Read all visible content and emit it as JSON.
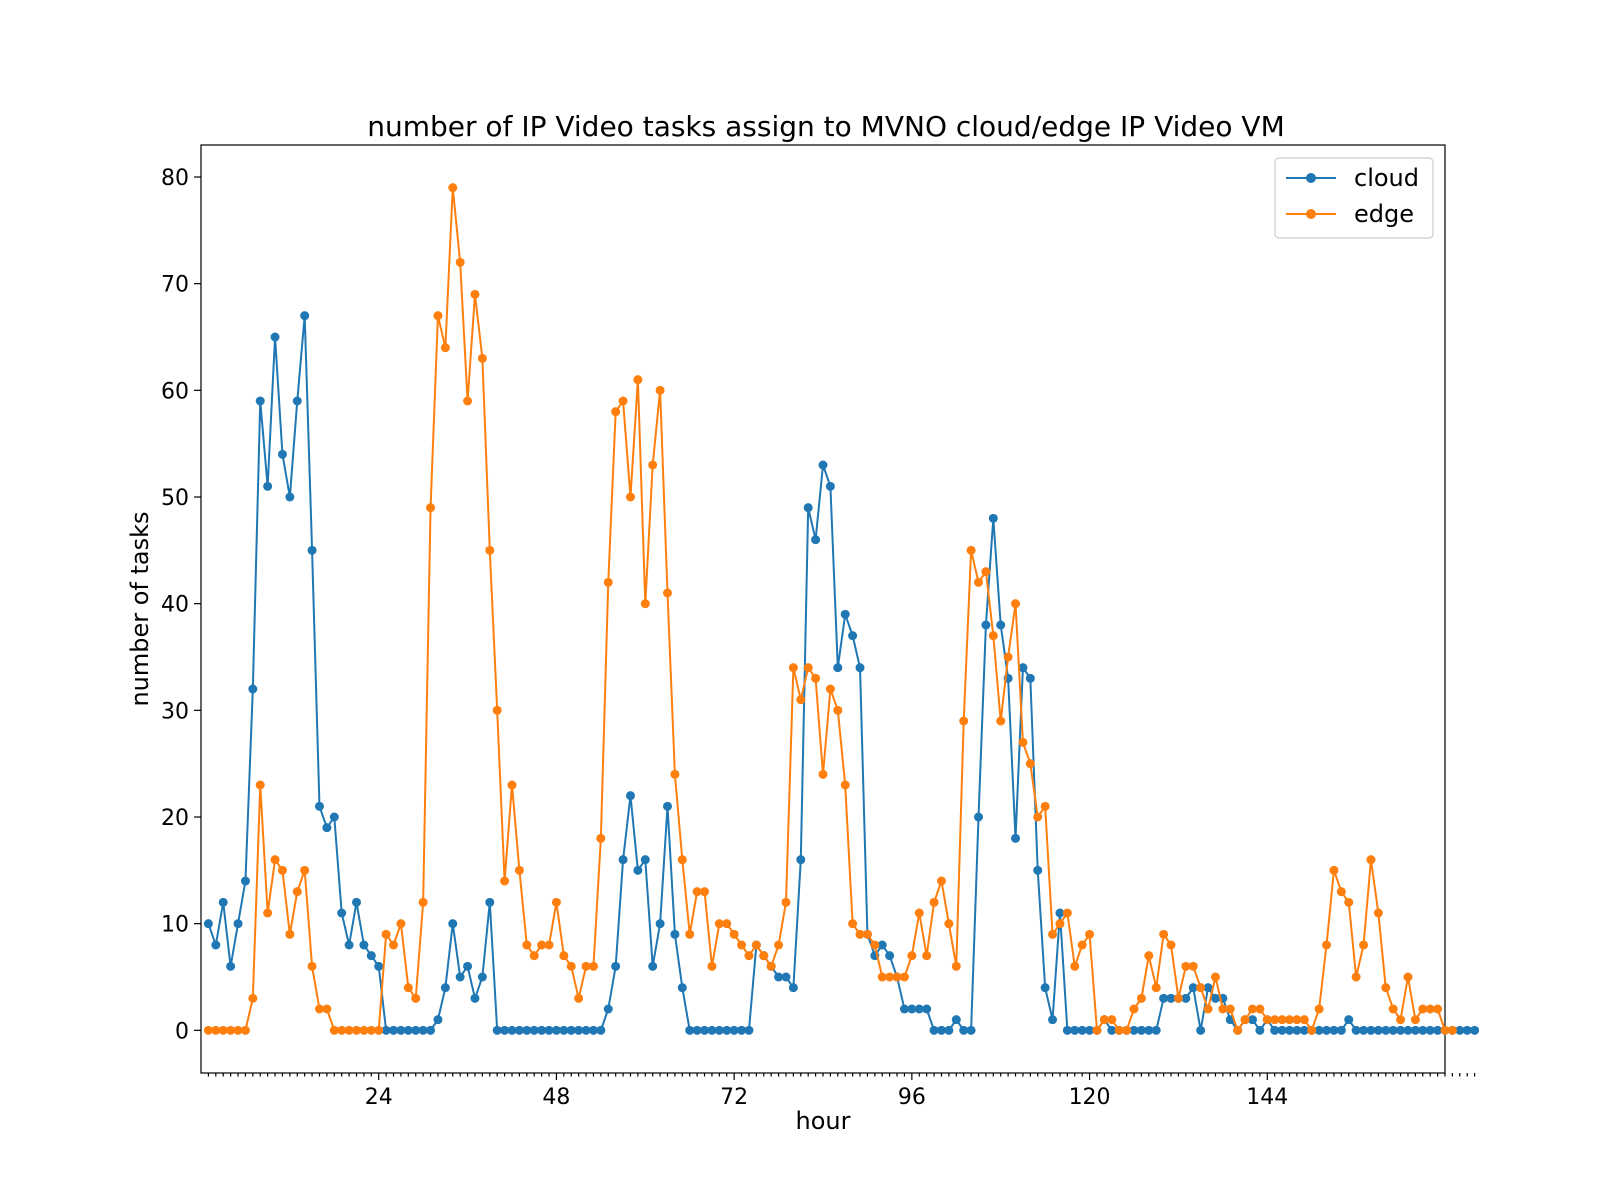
{
  "chart_data": {
    "type": "line",
    "title": "number of IP Video tasks assign to MVNO cloud/edge IP Video VM",
    "xlabel": "hour",
    "ylabel": "number of tasks",
    "xlim": [
      0,
      168
    ],
    "ylim": [
      -4,
      83
    ],
    "xticks": [
      24,
      48,
      72,
      96,
      120,
      144
    ],
    "yticks": [
      0,
      10,
      20,
      30,
      40,
      50,
      60,
      70,
      80
    ],
    "legend": "top-right",
    "grid": false,
    "x_start": 1,
    "series": [
      {
        "name": "cloud",
        "color": "#1f77b4",
        "values": [
          10,
          8,
          12,
          6,
          10,
          14,
          32,
          59,
          51,
          65,
          54,
          50,
          59,
          67,
          45,
          21,
          19,
          20,
          11,
          8,
          12,
          8,
          7,
          6,
          0,
          0,
          0,
          0,
          0,
          0,
          0,
          1,
          4,
          10,
          5,
          6,
          3,
          5,
          12,
          0,
          0,
          0,
          0,
          0,
          0,
          0,
          0,
          0,
          0,
          0,
          0,
          0,
          0,
          0,
          2,
          6,
          16,
          22,
          15,
          16,
          6,
          10,
          21,
          9,
          4,
          0,
          0,
          0,
          0,
          0,
          0,
          0,
          0,
          0,
          8,
          7,
          6,
          5,
          5,
          4,
          16,
          49,
          46,
          53,
          51,
          34,
          39,
          37,
          34,
          9,
          7,
          8,
          7,
          5,
          2,
          2,
          2,
          2,
          0,
          0,
          0,
          1,
          0,
          0,
          20,
          38,
          48,
          38,
          33,
          18,
          34,
          33,
          15,
          4,
          1,
          11,
          0,
          0,
          0,
          0,
          0,
          1,
          0,
          0,
          0,
          0,
          0,
          0,
          0,
          3,
          3,
          3,
          3,
          4,
          0,
          4,
          3,
          3,
          1,
          0,
          1,
          1,
          0,
          1,
          0,
          0,
          0,
          0,
          0,
          0,
          0,
          0,
          0,
          0,
          1,
          0,
          0,
          0,
          0,
          0,
          0,
          0,
          0,
          0,
          0,
          0,
          0,
          0,
          0,
          0,
          0,
          0
        ]
      },
      {
        "name": "edge",
        "color": "#ff7f0e",
        "values": [
          0,
          0,
          0,
          0,
          0,
          0,
          3,
          23,
          11,
          16,
          15,
          9,
          13,
          15,
          6,
          2,
          2,
          0,
          0,
          0,
          0,
          0,
          0,
          0,
          9,
          8,
          10,
          4,
          3,
          12,
          49,
          67,
          64,
          79,
          72,
          59,
          69,
          63,
          45,
          30,
          14,
          23,
          15,
          8,
          7,
          8,
          8,
          12,
          7,
          6,
          3,
          6,
          6,
          18,
          42,
          58,
          59,
          50,
          61,
          40,
          53,
          60,
          41,
          24,
          16,
          9,
          13,
          13,
          6,
          10,
          10,
          9,
          8,
          7,
          8,
          7,
          6,
          8,
          12,
          34,
          31,
          34,
          33,
          24,
          32,
          30,
          23,
          10,
          9,
          9,
          8,
          5,
          5,
          5,
          5,
          7,
          11,
          7,
          12,
          14,
          10,
          6,
          29,
          45,
          42,
          43,
          37,
          29,
          35,
          40,
          27,
          25,
          20,
          21,
          9,
          10,
          11,
          6,
          8,
          9,
          0,
          1,
          1,
          0,
          0,
          2,
          3,
          7,
          4,
          9,
          8,
          3,
          6,
          6,
          4,
          2,
          5,
          2,
          2,
          0,
          1,
          2,
          2,
          1,
          1,
          1,
          1,
          1,
          1,
          0,
          2,
          8,
          15,
          13,
          12,
          5,
          8,
          16,
          11,
          4,
          2,
          1,
          5,
          1,
          2,
          2,
          2,
          0,
          0
        ]
      }
    ]
  }
}
